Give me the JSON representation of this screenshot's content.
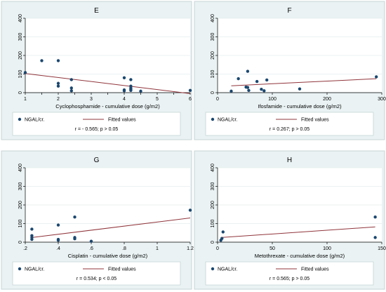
{
  "chart_data": [
    {
      "type": "scatter",
      "panel_title": "E",
      "xlabel": "Cyclophosphamide - cumulative dose (g/m2)",
      "ylabel": "",
      "xlim": [
        1,
        6
      ],
      "ylim": [
        0,
        400
      ],
      "xticks": [
        1,
        1.5,
        2,
        2.5,
        3,
        3.5,
        4,
        4.5,
        5,
        5.5,
        6
      ],
      "xtick_labels": [
        "1",
        "",
        "2",
        "",
        "3",
        "",
        "4",
        "",
        "5",
        "",
        "6"
      ],
      "yticks": [
        0,
        100,
        200,
        300,
        400
      ],
      "ytick_labels": [
        "0",
        "100",
        "200",
        "300",
        "400"
      ],
      "points": [
        [
          1,
          108
        ],
        [
          1.5,
          172
        ],
        [
          2,
          172
        ],
        [
          2,
          50
        ],
        [
          2,
          35
        ],
        [
          2.4,
          70
        ],
        [
          2.4,
          25
        ],
        [
          2.4,
          10
        ],
        [
          4,
          80
        ],
        [
          4,
          15
        ],
        [
          4,
          10
        ],
        [
          4.2,
          70
        ],
        [
          4.2,
          35
        ],
        [
          4.2,
          25
        ],
        [
          4.2,
          18
        ],
        [
          4.2,
          12
        ],
        [
          4.5,
          8
        ],
        [
          6,
          12
        ]
      ],
      "fit": {
        "x": [
          1,
          6
        ],
        "y": [
          103,
          -5
        ]
      },
      "legend": {
        "points_label": "NGAL/cr.",
        "line_label": "Fitted values"
      },
      "annotation": "r = - 0.565; p > 0.05",
      "grid": true,
      "legend_position": "bottom"
    },
    {
      "type": "scatter",
      "panel_title": "F",
      "xlabel": "Ifosfamide - cumulative dose (g/m2)",
      "ylabel": "",
      "xlim": [
        0,
        300
      ],
      "ylim": [
        0,
        400
      ],
      "xticks": [
        0,
        100,
        200,
        300
      ],
      "xtick_labels": [
        "0",
        "100",
        "200",
        "300"
      ],
      "yticks": [
        0,
        100,
        200,
        300,
        400
      ],
      "ytick_labels": [
        "0",
        "100",
        "200",
        "300",
        "400"
      ],
      "points": [
        [
          25,
          8
        ],
        [
          38,
          75
        ],
        [
          52,
          30
        ],
        [
          55,
          115
        ],
        [
          55,
          28
        ],
        [
          57,
          12
        ],
        [
          72,
          60
        ],
        [
          80,
          18
        ],
        [
          85,
          10
        ],
        [
          90,
          68
        ],
        [
          150,
          20
        ],
        [
          290,
          85
        ]
      ],
      "fit": {
        "x": [
          25,
          290
        ],
        "y": [
          37,
          75
        ]
      },
      "legend": {
        "points_label": "NGAL/cr.",
        "line_label": "Fitted values"
      },
      "annotation": "r = 0.267; p > 0.05",
      "grid": true,
      "legend_position": "bottom"
    },
    {
      "type": "scatter",
      "panel_title": "G",
      "xlabel": "Cisplatin - cumulative dose (g/m2)",
      "ylabel": "",
      "xlim": [
        0.2,
        1.2
      ],
      "ylim": [
        0,
        400
      ],
      "xticks": [
        0.2,
        0.4,
        0.6,
        0.8,
        1,
        1.2
      ],
      "xtick_labels": [
        ".2",
        ".4",
        ".6",
        ".8",
        "1",
        "1.2"
      ],
      "yticks": [
        0,
        100,
        200,
        300,
        400
      ],
      "ytick_labels": [
        "0",
        "100",
        "200",
        "300",
        "400"
      ],
      "points": [
        [
          0.24,
          70
        ],
        [
          0.24,
          35
        ],
        [
          0.24,
          25
        ],
        [
          0.24,
          15
        ],
        [
          0.4,
          92
        ],
        [
          0.4,
          15
        ],
        [
          0.4,
          10
        ],
        [
          0.5,
          135
        ],
        [
          0.5,
          25
        ],
        [
          0.5,
          18
        ],
        [
          0.6,
          5
        ],
        [
          1.2,
          172
        ]
      ],
      "fit": {
        "x": [
          0.24,
          1.2
        ],
        "y": [
          25,
          130
        ]
      },
      "legend": {
        "points_label": "NGAL/cr.",
        "line_label": "Fitted values"
      },
      "annotation": "r = 0.534; p < 0.05",
      "grid": true,
      "legend_position": "bottom"
    },
    {
      "type": "scatter",
      "panel_title": "H",
      "xlabel": "Metothrexate - cumulative dose (g/m2)",
      "ylabel": "",
      "xlim": [
        0,
        150
      ],
      "ylim": [
        0,
        400
      ],
      "xticks": [
        0,
        50,
        100,
        150
      ],
      "xtick_labels": [
        "0",
        "50",
        "100",
        "150"
      ],
      "yticks": [
        0,
        100,
        200,
        300,
        400
      ],
      "ytick_labels": [
        "0",
        "100",
        "200",
        "300",
        "400"
      ],
      "points": [
        [
          3,
          10
        ],
        [
          4,
          20
        ],
        [
          5,
          55
        ],
        [
          144,
          135
        ],
        [
          144,
          25
        ]
      ],
      "fit": {
        "x": [
          3,
          144
        ],
        "y": [
          25,
          82
        ]
      },
      "legend": {
        "points_label": "NGAL/cr.",
        "line_label": "Fitted values"
      },
      "annotation": "r = 0.565; p > 0.05",
      "grid": true,
      "legend_position": "bottom"
    }
  ],
  "colors": {
    "panel_bg": "#eaf2f3",
    "panel_border": "#c7d4d6",
    "plot_bg": "#ffffff",
    "grid": "#e4ecee",
    "points": "#1a476f",
    "fit_line": "#90353b",
    "text": "#000000"
  }
}
